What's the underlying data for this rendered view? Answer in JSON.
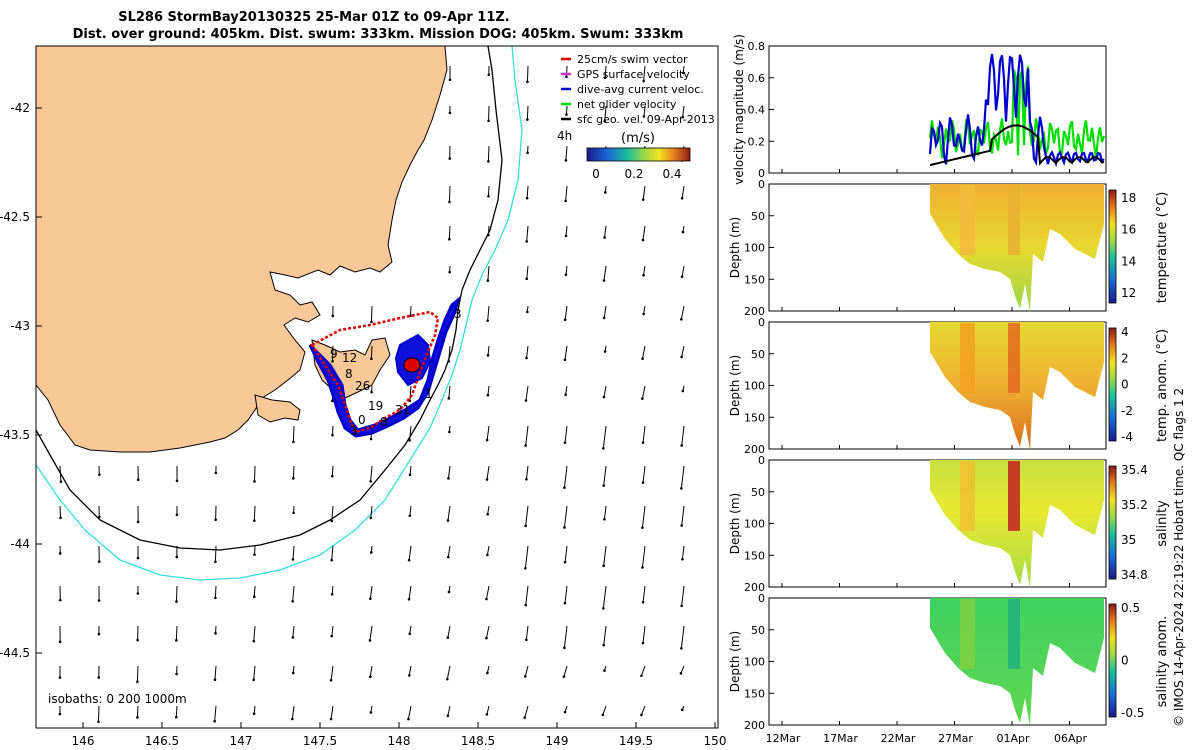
{
  "title": {
    "line1": "SL286 StormBay20130325 25-Mar 01Z to 09-Apr 11Z.",
    "line2": "Dist. over ground: 405km. Dist. swum: 333km. Mission DOG: 405km. Swum: 333km"
  },
  "map": {
    "xticks": [
      "146",
      "146.5",
      "147",
      "147.5",
      "148",
      "148.5",
      "149",
      "149.5",
      "150"
    ],
    "yticks": [
      "-42",
      "-42.5",
      "-43",
      "-43.5",
      "-44",
      "-44.5"
    ],
    "isobath_label": "isobaths: 0   200  1000m",
    "legend": {
      "items": [
        "25cm/s swim vector",
        "GPS surface velocity",
        "dive-avg current veloc.",
        "net glider velocity",
        "sfc geo. vel. 09-Apr-2013"
      ],
      "colors": [
        "#dd0000",
        "#cc33cc",
        "#0000cc",
        "#00dd00",
        "#000000"
      ],
      "four_hour_label": "4h",
      "colorbar_label": "(m/s)",
      "colorbar_ticks": [
        "0",
        "0.2",
        "0.4"
      ]
    },
    "track_day_labels": [
      "9",
      "12",
      "8",
      "26",
      "19",
      "3",
      "31",
      "1",
      "8",
      "0",
      "3"
    ],
    "land_color": "#f9c896",
    "isobath_200_color": "#000000",
    "isobath_1000_color": "#33dddd"
  },
  "chart_data": [
    {
      "type": "line",
      "ylabel": "velocity magnitude (m/s)",
      "ylim": [
        0,
        0.8
      ],
      "yticks": [
        "0",
        "0.2",
        "0.4",
        "0.6",
        "0.8"
      ],
      "series": [
        {
          "name": "net glider velocity",
          "color": "#00dd00"
        },
        {
          "name": "dive-avg current veloc.",
          "color": "#0000cc"
        },
        {
          "name": "sfc geo. vel.",
          "color": "#000000"
        }
      ]
    },
    {
      "type": "heatmap",
      "ylabel": "Depth (m)",
      "cblabel": "temperature (°C)",
      "cbticks": [
        "12",
        "14",
        "16",
        "18"
      ],
      "yticks": [
        "0",
        "50",
        "100",
        "150",
        "200"
      ]
    },
    {
      "type": "heatmap",
      "ylabel": "Depth (m)",
      "cblabel": "temp. anom. (°C)",
      "cbticks": [
        "4",
        "2",
        "0",
        "-2",
        "-4"
      ],
      "yticks": [
        "0",
        "50",
        "100",
        "150",
        "200"
      ]
    },
    {
      "type": "heatmap",
      "ylabel": "Depth (m)",
      "cblabel": "salinity",
      "cbticks": [
        "35.4",
        "35.2",
        "35",
        "34.8"
      ],
      "yticks": [
        "0",
        "50",
        "100",
        "150",
        "200"
      ]
    },
    {
      "type": "heatmap",
      "ylabel": "Depth (m)",
      "cblabel": "salinity anom.",
      "cbticks": [
        "0.5",
        "0",
        "-0.5"
      ],
      "yticks": [
        "0",
        "50",
        "100",
        "150",
        "200"
      ]
    }
  ],
  "time_axis": [
    "12Mar",
    "17Mar",
    "22Mar",
    "27Mar",
    "01Apr",
    "06Apr"
  ],
  "credit": "© IMOS 14-Apr-2024 22:19:22 Hobart time. QC flags 1  2"
}
